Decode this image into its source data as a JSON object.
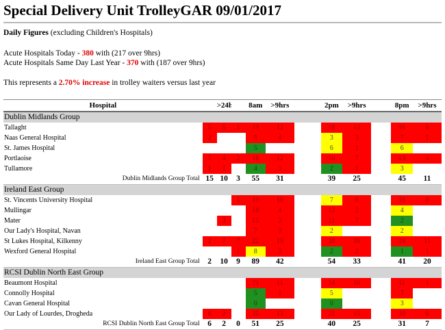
{
  "title": "Special Delivery Unit TrolleyGAR 09/01/2017",
  "daily": {
    "label": "Daily Figures",
    "note": " (excluding Children's Hospitals)",
    "today_prefix": "Acute Hospitals Today - ",
    "today_value": "380",
    "today_suffix": " with (217 over 9hrs)",
    "lastyear_prefix": "Acute Hospitals Same Day Last Year - ",
    "lastyear_value": "370",
    "lastyear_suffix": " with (187 over 9hrs)",
    "increase_prefix": "This represents a ",
    "increase_value": "2.70% increase",
    "increase_suffix": " in trolley waiters versus last year"
  },
  "table": {
    "headers": [
      "Hospital",
      "",
      ">24hrs",
      "",
      "8am",
      ">9hrs",
      "",
      "2pm",
      ">9hrs",
      "",
      "8pm",
      ">9hrs"
    ],
    "colors": {
      "r": "#ff0000",
      "y": "#ffff00",
      "g": "#209020"
    },
    "groups": [
      {
        "name": "Dublin Midlands Group",
        "rows": [
          {
            "hospital": "Tallaght",
            "cells": [
              [
                "5",
                "r"
              ],
              [
                "5",
                "r"
              ],
              [
                "1",
                "r"
              ],
              [
                "19",
                "r"
              ],
              [
                "12",
                "r"
              ],
              [
                "18",
                "r"
              ],
              [
                "13",
                "r"
              ],
              [
                "16",
                "r"
              ],
              [
                "6",
                "r"
              ]
            ]
          },
          {
            "hospital": "Naas General Hospital",
            "cells": [
              [
                "2",
                "r"
              ],
              [
                "",
                ""
              ],
              [
                "",
                ""
              ],
              [
                "9",
                "r"
              ],
              [
                "4",
                "r"
              ],
              [
                "3",
                "y"
              ],
              [
                "3",
                "r"
              ],
              [
                "7",
                "r"
              ],
              [
                "1",
                "r"
              ]
            ]
          },
          {
            "hospital": "St. James Hospital",
            "cells": [
              [
                "",
                ""
              ],
              [
                "",
                ""
              ],
              [
                "",
                ""
              ],
              [
                "5",
                "g"
              ],
              [
                "",
                ""
              ],
              [
                "6",
                "y"
              ],
              [
                "1",
                "r"
              ],
              [
                "6",
                "y"
              ],
              [
                "",
                ""
              ]
            ]
          },
          {
            "hospital": "Portlaoise",
            "cells": [
              [
                "7",
                "r"
              ],
              [
                "4",
                "r"
              ],
              [
                "2",
                "r"
              ],
              [
                "18",
                "r"
              ],
              [
                "12",
                "r"
              ],
              [
                "10",
                "r"
              ],
              [
                "7",
                "r"
              ],
              [
                "13",
                "r"
              ],
              [
                "4",
                "r"
              ]
            ]
          },
          {
            "hospital": "Tullamore",
            "cells": [
              [
                "1",
                "r"
              ],
              [
                "1",
                "r"
              ],
              [
                "",
                ""
              ],
              [
                "4",
                "g"
              ],
              [
                "3",
                "r"
              ],
              [
                "2",
                "g"
              ],
              [
                "1",
                "r"
              ],
              [
                "3",
                "y"
              ],
              [
                "",
                ""
              ]
            ]
          }
        ],
        "total_label": "Dublin Midlands Group Total",
        "totals": [
          "15",
          "10",
          "3",
          "55",
          "31",
          "39",
          "25",
          "45",
          "11"
        ]
      },
      {
        "name": "Ireland East Group",
        "rows": [
          {
            "hospital": "St. Vincents University Hospital",
            "cells": [
              [
                "",
                ""
              ],
              [
                "",
                ""
              ],
              [
                "1",
                "r"
              ],
              [
                "19",
                "r"
              ],
              [
                "10",
                "r"
              ],
              [
                "7",
                "y"
              ],
              [
                "6",
                "r"
              ],
              [
                "16",
                "r"
              ],
              [
                "8",
                "r"
              ]
            ]
          },
          {
            "hospital": "Mullingar",
            "cells": [
              [
                "",
                ""
              ],
              [
                "",
                ""
              ],
              [
                "",
                ""
              ],
              [
                "18",
                "r"
              ],
              [
                "4",
                "r"
              ],
              [
                "12",
                "r"
              ],
              [
                "2",
                "r"
              ],
              [
                "4",
                "y"
              ],
              [
                "",
                ""
              ]
            ]
          },
          {
            "hospital": "Mater",
            "cells": [
              [
                "",
                ""
              ],
              [
                "3",
                "r"
              ],
              [
                "",
                ""
              ],
              [
                "15",
                "r"
              ],
              [
                "3",
                "r"
              ],
              [
                "11",
                "r"
              ],
              [
                "7",
                "r"
              ],
              [
                "2",
                "g"
              ],
              [
                "",
                ""
              ]
            ]
          },
          {
            "hospital": "Our Lady's Hospital, Navan",
            "cells": [
              [
                "",
                ""
              ],
              [
                "",
                ""
              ],
              [
                "",
                ""
              ],
              [
                "7",
                "r"
              ],
              [
                "3",
                "r"
              ],
              [
                "2",
                "y"
              ],
              [
                "",
                ""
              ],
              [
                "2",
                "y"
              ],
              [
                "",
                ""
              ]
            ]
          },
          {
            "hospital": "St Lukes Hospital, Kilkenny",
            "cells": [
              [
                "2",
                "r"
              ],
              [
                "7",
                "r"
              ],
              [
                "7",
                "r"
              ],
              [
                "22",
                "r"
              ],
              [
                "19",
                "r"
              ],
              [
                "20",
                "r"
              ],
              [
                "16",
                "r"
              ],
              [
                "16",
                "r"
              ],
              [
                "11",
                "r"
              ]
            ]
          },
          {
            "hospital": "Wexford General Hospital",
            "cells": [
              [
                "",
                ""
              ],
              [
                "",
                ""
              ],
              [
                "1",
                "r"
              ],
              [
                "8",
                "y"
              ],
              [
                "3",
                "r"
              ],
              [
                "2",
                "g"
              ],
              [
                "2",
                "r"
              ],
              [
                "1",
                "g"
              ],
              [
                "1",
                "r"
              ]
            ]
          }
        ],
        "total_label": "Ireland East Group Total",
        "totals": [
          "2",
          "10",
          "9",
          "89",
          "42",
          "54",
          "33",
          "41",
          "20"
        ]
      },
      {
        "name": "RCSI Dublin North East Group",
        "rows": [
          {
            "hospital": "Beaumont Hospital",
            "cells": [
              [
                "",
                ""
              ],
              [
                "",
                ""
              ],
              [
                "",
                ""
              ],
              [
                "21",
                "r"
              ],
              [
                "11",
                "r"
              ],
              [
                "14",
                "r"
              ],
              [
                "10",
                "r"
              ],
              [
                "11",
                "r"
              ],
              [
                "1",
                "r"
              ]
            ]
          },
          {
            "hospital": "Connolly Hospital",
            "cells": [
              [
                "",
                ""
              ],
              [
                "",
                ""
              ],
              [
                "",
                ""
              ],
              [
                "5",
                "g"
              ],
              [
                "1",
                "r"
              ],
              [
                "5",
                "y"
              ],
              [
                "",
                ""
              ],
              [
                "7",
                "r"
              ],
              [
                "",
                ""
              ]
            ]
          },
          {
            "hospital": "Cavan General Hospital",
            "cells": [
              [
                "",
                ""
              ],
              [
                "",
                ""
              ],
              [
                "",
                ""
              ],
              [
                "0",
                "g"
              ],
              [
                "",
                ""
              ],
              [
                "0",
                "g"
              ],
              [
                "",
                ""
              ],
              [
                "3",
                "y"
              ],
              [
                "",
                ""
              ]
            ]
          },
          {
            "hospital": "Our Lady of Lourdes, Drogheda",
            "cells": [
              [
                "6",
                "r"
              ],
              [
                "2",
                "r"
              ],
              [
                "",
                ""
              ],
              [
                "25",
                "r"
              ],
              [
                "13",
                "r"
              ],
              [
                "21",
                "r"
              ],
              [
                "15",
                "r"
              ],
              [
                "10",
                "r"
              ],
              [
                "6",
                "r"
              ]
            ]
          }
        ],
        "total_label": "RCSI Dublin North East Group Total",
        "totals": [
          "6",
          "2",
          "0",
          "51",
          "25",
          "40",
          "25",
          "31",
          "7"
        ]
      }
    ]
  }
}
